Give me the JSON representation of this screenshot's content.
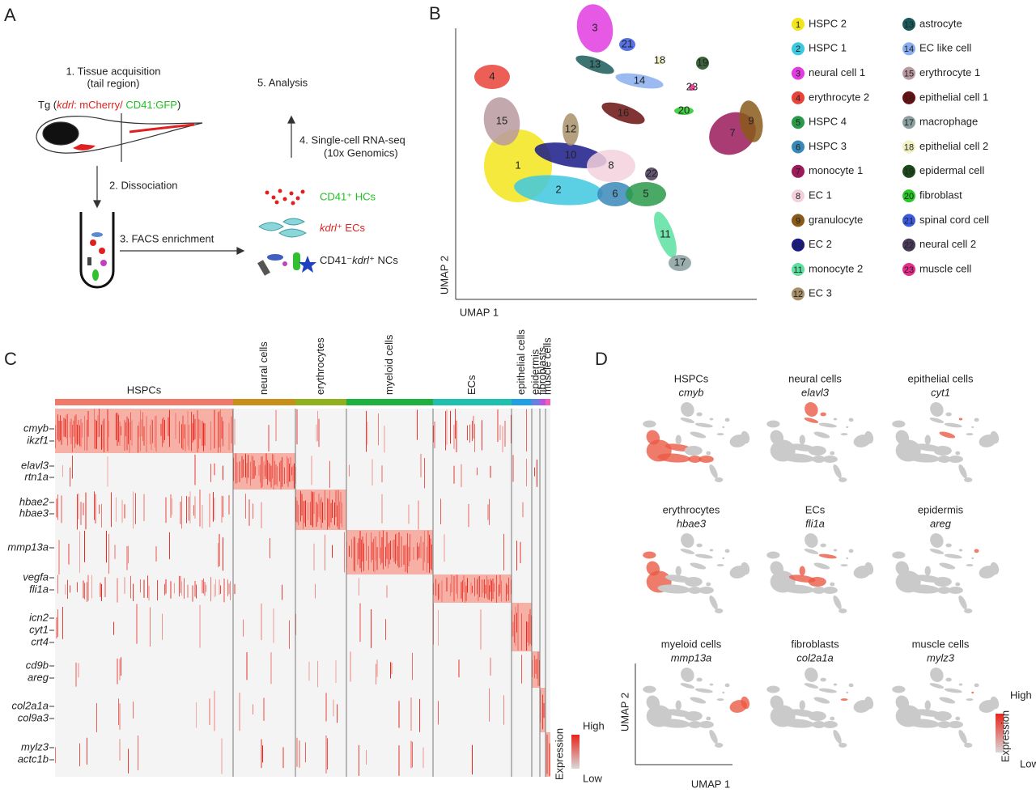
{
  "panel_a": {
    "label": "A",
    "step1": "1. Tissue acquisition",
    "step1_note": "(tail region)",
    "transgene": {
      "prefix": "Tg (",
      "kdrl": "kdrl",
      "mid": ": mCherry/ ",
      "cd41": "CD41:GFP",
      "suffix": ")"
    },
    "step2": "2. Dissociation",
    "step3": "3. FACS enrichment",
    "step4": "4. Single-cell RNA-seq",
    "step4_note": "(10x Genomics)",
    "step5": "5. Analysis",
    "hcs": "CD41⁺ HCs",
    "ecs": {
      "gene": "kdrl",
      "rest": "⁺ ECs"
    },
    "ncs": {
      "pre": "CD41⁻",
      "gene": "kdrl",
      "rest": "⁺ NCs"
    }
  },
  "panel_b": {
    "label": "B",
    "x_label": "UMAP 1",
    "y_label": "UMAP 2",
    "clusters": [
      {
        "id": 1,
        "name": "HSPC 2",
        "color": "#f3e51c"
      },
      {
        "id": 2,
        "name": "HSPC 1",
        "color": "#3ec8e0"
      },
      {
        "id": 3,
        "name": "neural cell 1",
        "color": "#e03ce0"
      },
      {
        "id": 4,
        "name": "erythrocyte 2",
        "color": "#e8433a"
      },
      {
        "id": 5,
        "name": "HSPC 4",
        "color": "#2a9a4a"
      },
      {
        "id": 6,
        "name": "HSPC 3",
        "color": "#3a88b8"
      },
      {
        "id": 7,
        "name": "monocyte  1",
        "color": "#9a1a5a"
      },
      {
        "id": 8,
        "name": "EC 1",
        "color": "#f3d1dc"
      },
      {
        "id": 9,
        "name": "granulocyte",
        "color": "#8a5a1a"
      },
      {
        "id": 10,
        "name": "EC 2",
        "color": "#1a1a8a"
      },
      {
        "id": 11,
        "name": "monocyte 2",
        "color": "#5ce0a0"
      },
      {
        "id": 12,
        "name": "EC 3",
        "color": "#a89068"
      },
      {
        "id": 13,
        "name": "astrocyte",
        "color": "#1a5a5a"
      },
      {
        "id": 14,
        "name": "EC like cell",
        "color": "#8aaef0"
      },
      {
        "id": 15,
        "name": "erythrocyte 1",
        "color": "#b89aa0"
      },
      {
        "id": 16,
        "name": "epithelial cell 1",
        "color": "#6a1010"
      },
      {
        "id": 17,
        "name": "macrophage",
        "color": "#8aa0a0"
      },
      {
        "id": 18,
        "name": "epithelial cell 2",
        "color": "#f0f0c0"
      },
      {
        "id": 19,
        "name": "epidermal cell",
        "color": "#1a4a1a"
      },
      {
        "id": 20,
        "name": "fibroblast",
        "color": "#28c828"
      },
      {
        "id": 21,
        "name": "spinal cord cell",
        "color": "#3a5ae0"
      },
      {
        "id": 22,
        "name": "neural cell 2",
        "color": "#4a3a5a"
      },
      {
        "id": 23,
        "name": "muscle cell",
        "color": "#e82a8a"
      }
    ]
  },
  "panel_c": {
    "label": "C",
    "groups": [
      {
        "name": "HSPCs",
        "color": "#f07a6a"
      },
      {
        "name": "neural cells",
        "color": "#c8901a"
      },
      {
        "name": "erythrocytes",
        "color": "#90b020"
      },
      {
        "name": "myeloid cells",
        "color": "#20b040"
      },
      {
        "name": "ECs",
        "color": "#20c0b0"
      },
      {
        "name": "epithelial cells",
        "color": "#20a0e0"
      },
      {
        "name": "epidermis",
        "color": "#6a80e0"
      },
      {
        "name": "fibroblasts",
        "color": "#c050e0"
      },
      {
        "name": "muscle cells",
        "color": "#f060b0"
      }
    ],
    "genes": [
      "cmyb",
      "ikzf1",
      "elavl3",
      "rtn1a",
      "hbae2",
      "hbae3",
      "mmp13a",
      "vegfa",
      "fli1a",
      "icn2",
      "cyt1",
      "crt4",
      "cd9b",
      "areg",
      "col2a1a",
      "col9a3",
      "mylz3",
      "actc1b"
    ],
    "legend": {
      "title": "Expression",
      "high": "High",
      "low": "Low"
    }
  },
  "panel_d": {
    "label": "D",
    "x_label": "UMAP 1",
    "y_label": "UMAP 2",
    "panels": [
      {
        "cell_type": "HSPCs",
        "gene": "cmyb"
      },
      {
        "cell_type": "neural cells",
        "gene": "elavl3"
      },
      {
        "cell_type": "epithelial cells",
        "gene": "cyt1"
      },
      {
        "cell_type": "erythrocytes",
        "gene": "hbae3"
      },
      {
        "cell_type": "ECs",
        "gene": "fli1a"
      },
      {
        "cell_type": "epidermis",
        "gene": "areg"
      },
      {
        "cell_type": "myeloid cells",
        "gene": "mmp13a"
      },
      {
        "cell_type": "fibroblasts",
        "gene": "col2a1a"
      },
      {
        "cell_type": "muscle cells",
        "gene": "mylz3"
      }
    ],
    "legend": {
      "title": "Expression",
      "high": "High",
      "low": "Low"
    }
  }
}
